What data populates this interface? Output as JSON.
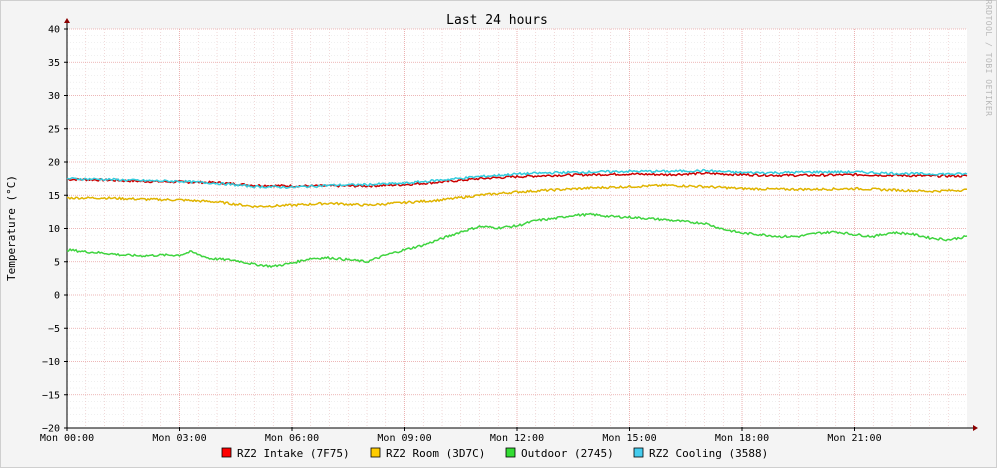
{
  "chart_data": {
    "type": "line",
    "title": "Last 24 hours",
    "ylabel": "Temperature (°C)",
    "xlabel": "",
    "ylim": [
      -20,
      40
    ],
    "xlim": [
      0,
      24
    ],
    "y_ticks": [
      -20,
      -15,
      -10,
      -5,
      0,
      5,
      10,
      15,
      20,
      25,
      30,
      35,
      40
    ],
    "y_tick_labels": [
      "−20",
      "−15",
      "−10",
      "−5",
      "0",
      "5",
      "10",
      "15",
      "20",
      "25",
      "30",
      "35",
      "40"
    ],
    "x_ticks": [
      0,
      3,
      6,
      9,
      12,
      15,
      18,
      21
    ],
    "x_tick_labels": [
      "Mon 00:00",
      "Mon 03:00",
      "Mon 06:00",
      "Mon 09:00",
      "Mon 12:00",
      "Mon 15:00",
      "Mon 18:00",
      "Mon 21:00"
    ],
    "grid": true,
    "legend_position": "bottom",
    "watermark": "RRDTOOL / TOBI OETIKER",
    "series": [
      {
        "name": "RZ2 Intake (7F75)",
        "color": "#ff0000",
        "line_color": "#cc0000",
        "x": [
          0,
          1,
          2,
          3,
          4,
          5,
          6,
          7,
          8,
          9,
          10,
          11,
          12,
          13,
          14,
          15,
          16,
          17,
          18,
          19,
          20,
          21,
          22,
          23,
          24
        ],
        "y": [
          17.4,
          17.3,
          17.1,
          17.0,
          16.9,
          16.5,
          16.4,
          16.4,
          16.4,
          16.6,
          17.0,
          17.5,
          17.8,
          18.0,
          18.1,
          18.2,
          18.1,
          18.3,
          18.1,
          18.0,
          18.0,
          18.1,
          18.0,
          17.9,
          17.9
        ]
      },
      {
        "name": "RZ2 Room (3D7C)",
        "color": "#ffcc00",
        "line_color": "#e0b400",
        "x": [
          0,
          1,
          2,
          3,
          4,
          5,
          6,
          7,
          8,
          9,
          10,
          11,
          12,
          13,
          14,
          15,
          16,
          17,
          18,
          19,
          20,
          21,
          22,
          23,
          24
        ],
        "y": [
          14.6,
          14.6,
          14.4,
          14.3,
          14.0,
          13.3,
          13.5,
          13.8,
          13.5,
          13.9,
          14.3,
          15.0,
          15.5,
          15.8,
          16.1,
          16.3,
          16.5,
          16.3,
          16.0,
          15.9,
          15.9,
          16.0,
          15.8,
          15.6,
          15.8
        ]
      },
      {
        "name": "Outdoor (2745)",
        "color": "#33dd33",
        "line_color": "#3fd43f",
        "x": [
          0,
          0.5,
          1,
          1.5,
          2,
          2.5,
          3,
          3.3,
          3.8,
          4.5,
          5,
          5.5,
          6,
          6.5,
          7,
          7.5,
          8,
          8.5,
          9,
          9.5,
          10,
          10.5,
          11,
          11.5,
          12,
          12.5,
          13,
          13.5,
          14,
          14.5,
          15,
          15.5,
          16,
          16.5,
          17,
          17.5,
          18,
          18.5,
          19,
          19.5,
          20,
          20.5,
          21,
          21.5,
          22,
          22.5,
          23,
          23.5,
          24
        ],
        "y": [
          6.8,
          6.5,
          6.3,
          6.0,
          5.9,
          6.0,
          6.0,
          6.5,
          5.5,
          5.2,
          4.6,
          4.3,
          4.8,
          5.5,
          5.6,
          5.3,
          5.0,
          6.0,
          6.8,
          7.5,
          8.5,
          9.5,
          10.3,
          10.1,
          10.4,
          11.2,
          11.5,
          12.0,
          12.1,
          11.8,
          11.7,
          11.5,
          11.3,
          11.0,
          10.8,
          9.9,
          9.3,
          9.1,
          8.8,
          8.8,
          9.3,
          9.5,
          9.1,
          8.8,
          9.4,
          9.2,
          8.6,
          8.3,
          8.8
        ]
      },
      {
        "name": "RZ2 Cooling (3588)",
        "color": "#44ccee",
        "line_color": "#33ccdd",
        "x": [
          0,
          1,
          2,
          3,
          4,
          5,
          6,
          7,
          8,
          9,
          10,
          11,
          12,
          13,
          14,
          15,
          16,
          17,
          18,
          19,
          20,
          21,
          22,
          23,
          24
        ],
        "y": [
          17.5,
          17.4,
          17.2,
          17.1,
          16.8,
          16.3,
          16.2,
          16.5,
          16.6,
          16.8,
          17.3,
          17.8,
          18.2,
          18.4,
          18.5,
          18.6,
          18.6,
          18.7,
          18.4,
          18.4,
          18.5,
          18.5,
          18.3,
          18.2,
          18.2
        ]
      }
    ]
  }
}
